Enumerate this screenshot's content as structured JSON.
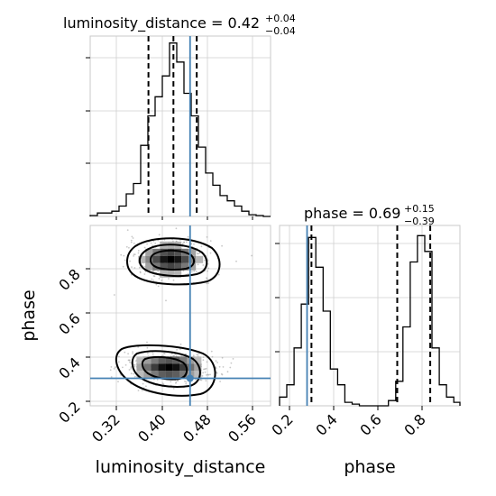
{
  "figure": {
    "panels": {
      "lum_hist": {
        "title": {
          "prefix": "luminosity_distance = 0.42",
          "upper": "+0.04",
          "lower": "−0.04"
        }
      },
      "phase_hist": {
        "title": {
          "prefix": "phase = 0.69",
          "upper": "+0.15",
          "lower": "−0.39"
        }
      },
      "joint": {
        "xlabel": "luminosity_distance",
        "ylabel": "phase"
      },
      "phase_bottom": {
        "xlabel": "phase"
      }
    }
  },
  "chart_data": {
    "type": "corner",
    "parameters": [
      "luminosity_distance",
      "phase"
    ],
    "truths": {
      "luminosity_distance": 0.45,
      "phase": 0.28
    },
    "grid": true,
    "luminosity_distance_hist": {
      "type": "histogram-step",
      "xlim": [
        0.27,
        0.595
      ],
      "title": "luminosity_distance = 0.42 +0.04 −0.04",
      "bin_edges": [
        0.27,
        0.283,
        0.296,
        0.309,
        0.322,
        0.335,
        0.348,
        0.361,
        0.374,
        0.387,
        0.4,
        0.413,
        0.426,
        0.439,
        0.452,
        0.465,
        0.478,
        0.491,
        0.504,
        0.517,
        0.53,
        0.543,
        0.556,
        0.569,
        0.582,
        0.595
      ],
      "counts": [
        0.5,
        2,
        2,
        3,
        6,
        13,
        19,
        41,
        58,
        69,
        81,
        100,
        89,
        71,
        58,
        40,
        25,
        18,
        12,
        9,
        6,
        3,
        1,
        0.5,
        0
      ],
      "quantiles": [
        0.375,
        0.42,
        0.462
      ]
    },
    "joint": {
      "type": "heatmap",
      "xlabel": "luminosity_distance",
      "ylabel": "phase",
      "xlim": [
        0.27,
        0.595
      ],
      "ylim": [
        0.155,
        0.975
      ],
      "xticks": [
        "0.32",
        "0.40",
        "0.48",
        "0.56"
      ],
      "yticks": [
        "0.2",
        "0.4",
        "0.6",
        "0.8"
      ],
      "modes": [
        {
          "x": 0.415,
          "y": 0.82,
          "sx": 0.03,
          "sy": 0.04
        },
        {
          "x": 0.412,
          "y": 0.33,
          "sx": 0.034,
          "sy": 0.035
        }
      ]
    },
    "phase_hist": {
      "type": "histogram-step",
      "xlabel": "phase",
      "xlim": [
        0.155,
        0.975
      ],
      "xticks": [
        "0.2",
        "0.4",
        "0.6",
        "0.8"
      ],
      "title": "phase = 0.69 +0.15 −0.39",
      "bin_edges": [
        0.155,
        0.188,
        0.221,
        0.254,
        0.287,
        0.32,
        0.353,
        0.386,
        0.419,
        0.452,
        0.485,
        0.518,
        0.551,
        0.584,
        0.617,
        0.65,
        0.683,
        0.716,
        0.749,
        0.782,
        0.815,
        0.848,
        0.881,
        0.914,
        0.947,
        0.975
      ],
      "counts": [
        5,
        12,
        33,
        58,
        96,
        79,
        54,
        21,
        12,
        2,
        1,
        0,
        0,
        0,
        0,
        3,
        14,
        45,
        82,
        97,
        88,
        33,
        12,
        5,
        2
      ],
      "quantiles": [
        0.3,
        0.69,
        0.84
      ]
    }
  }
}
